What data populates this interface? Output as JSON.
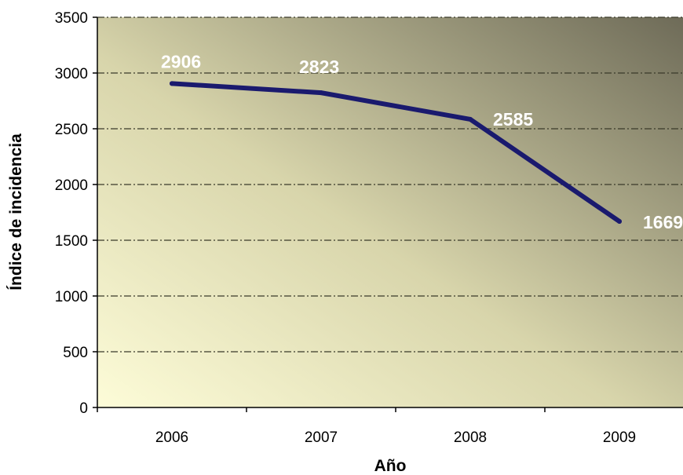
{
  "chart_data": {
    "type": "line",
    "categories": [
      "2006",
      "2007",
      "2008",
      "2009"
    ],
    "series": [
      {
        "values": [
          2906,
          2823,
          2585,
          1669
        ],
        "color": "#1a1a6e"
      }
    ],
    "data_labels": [
      "2906",
      "2823",
      "2585",
      "1669"
    ],
    "xlabel": "Año",
    "ylabel": "Índice de incidencia",
    "ylim": [
      0,
      3500
    ],
    "yticks": [
      0,
      500,
      1000,
      1500,
      2000,
      2500,
      3000,
      3500
    ],
    "grid": true,
    "gridline_style": "dash-dot",
    "legend": "none",
    "plot_background": [
      "#fdfcd8",
      "#6e6b58"
    ]
  }
}
